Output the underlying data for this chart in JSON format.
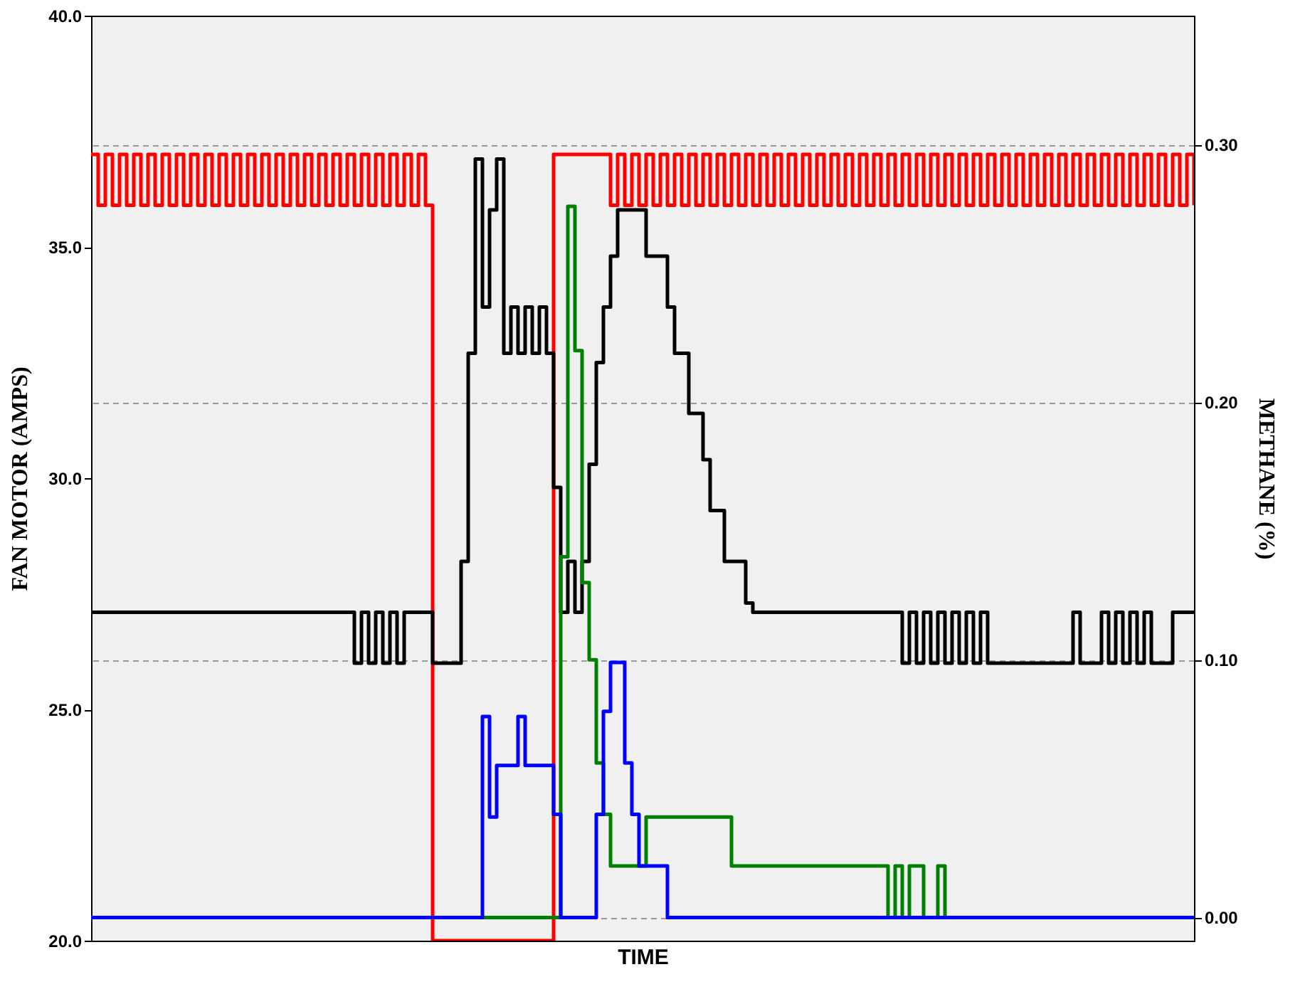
{
  "chart_data": {
    "type": "step",
    "xlabel": "TIME",
    "ylabel": "FAN MOTOR (AMPS)",
    "y2label": "METHANE (%)",
    "categories": [
      null,
      null,
      null,
      null,
      null,
      null,
      null,
      null,
      null,
      null,
      null,
      null,
      null,
      null,
      null,
      null,
      null,
      null,
      null,
      null,
      null,
      null,
      null,
      null,
      null,
      null,
      null,
      null,
      null,
      null,
      null,
      null,
      null,
      null,
      null,
      null,
      null,
      null,
      null,
      null,
      null,
      null,
      null,
      null,
      null,
      null,
      null,
      null,
      null,
      null,
      null,
      null,
      null,
      null,
      null,
      null,
      null,
      null,
      null,
      null,
      null,
      null,
      null,
      null,
      null,
      null,
      null,
      null,
      null,
      null,
      null,
      null,
      null,
      null,
      null,
      null,
      null,
      null,
      null,
      null,
      null,
      null,
      null,
      null,
      null,
      null,
      null,
      null,
      null,
      null,
      null,
      null,
      null,
      null,
      null,
      null,
      null,
      null,
      null,
      null,
      null,
      null,
      null,
      null,
      null,
      null,
      null,
      null,
      null,
      null,
      null,
      null,
      null,
      null,
      null,
      null,
      null,
      null,
      null,
      null,
      null,
      null,
      null,
      null,
      null,
      null,
      null,
      null,
      null,
      null,
      null,
      null,
      null,
      null,
      null,
      null,
      null,
      null,
      null,
      null,
      null,
      null,
      null,
      null,
      null,
      null,
      null,
      null,
      null,
      null,
      null,
      null,
      null,
      null,
      null,
      null
    ],
    "ylim": [
      20,
      40
    ],
    "yticks": [
      {
        "value": 20,
        "label": "20.0"
      },
      {
        "value": 25,
        "label": "25.0"
      },
      {
        "value": 30,
        "label": "30.0"
      },
      {
        "value": 35,
        "label": "35.0"
      },
      {
        "value": 40,
        "label": "40.0"
      }
    ],
    "y2lim": [
      -0.009,
      0.35
    ],
    "y2ticks": [
      {
        "value": 0,
        "label": "0.00"
      },
      {
        "value": 0.1,
        "label": "0.10"
      },
      {
        "value": 0.2,
        "label": "0.20"
      },
      {
        "value": 0.3,
        "label": "0.30"
      }
    ],
    "grid": true,
    "tick_labels": "y",
    "line_style": "solid",
    "marker": "none",
    "series": [
      {
        "color": "#ff0000",
        "values": [
          37.0,
          35.9,
          37.0,
          35.9,
          37.0,
          35.9,
          37.0,
          35.9,
          37.0,
          35.9,
          37.0,
          35.9,
          37.0,
          35.9,
          37.0,
          35.9,
          37.0,
          35.9,
          37.0,
          35.9,
          37.0,
          35.9,
          37.0,
          35.9,
          37.0,
          35.9,
          37.0,
          35.9,
          37.0,
          35.9,
          37.0,
          35.9,
          37.0,
          35.9,
          37.0,
          35.9,
          37.0,
          35.9,
          37.0,
          35.9,
          37.0,
          35.9,
          37.0,
          35.9,
          37.0,
          35.9,
          37.0,
          35.9,
          20.0,
          20.0,
          20.0,
          20.0,
          20.0,
          20.0,
          20.0,
          20.0,
          20.0,
          20.0,
          20.0,
          20.0,
          20.0,
          20.0,
          20.0,
          20.0,
          20.0,
          37.0,
          37.0,
          37.0,
          37.0,
          37.0,
          37.0,
          37.0,
          37.0,
          35.9,
          37.0,
          35.9,
          37.0,
          35.9,
          37.0,
          35.9,
          37.0,
          35.9,
          37.0,
          35.9,
          37.0,
          35.9,
          37.0,
          35.9,
          37.0,
          35.9,
          37.0,
          35.9,
          37.0,
          35.9,
          37.0,
          35.9,
          37.0,
          35.9,
          37.0,
          35.9,
          37.0,
          35.9,
          37.0,
          35.9,
          37.0,
          35.9,
          37.0,
          35.9,
          37.0,
          35.9,
          37.0,
          35.9,
          37.0,
          35.9,
          37.0,
          35.9,
          37.0,
          35.9,
          37.0,
          35.9,
          37.0,
          35.9,
          37.0,
          35.9,
          37.0,
          35.9,
          37.0,
          35.9,
          37.0,
          35.9,
          37.0,
          35.9,
          37.0,
          35.9,
          37.0,
          35.9,
          37.0,
          35.9,
          37.0,
          35.9,
          37.0,
          35.9,
          37.0,
          35.9,
          37.0,
          35.9,
          37.0,
          35.9,
          37.0,
          35.9,
          37.0,
          35.9,
          37.0,
          35.9,
          37.0,
          35.9
        ]
      },
      {
        "color": "#000000",
        "values": [
          27.1,
          27.1,
          27.1,
          27.1,
          27.1,
          27.1,
          27.1,
          27.1,
          27.1,
          27.1,
          27.1,
          27.1,
          27.1,
          27.1,
          27.1,
          27.1,
          27.1,
          27.1,
          27.1,
          27.1,
          27.1,
          27.1,
          27.1,
          27.1,
          27.1,
          27.1,
          27.1,
          27.1,
          27.1,
          27.1,
          27.1,
          27.1,
          27.1,
          27.1,
          27.1,
          27.1,
          27.1,
          26.0,
          27.1,
          26.0,
          27.1,
          26.0,
          27.1,
          26.0,
          27.1,
          27.1,
          27.1,
          27.1,
          26.0,
          26.0,
          26.0,
          26.0,
          28.2,
          32.7,
          36.9,
          33.7,
          35.8,
          36.9,
          32.7,
          33.7,
          32.7,
          33.7,
          32.7,
          33.7,
          32.7,
          29.8,
          27.1,
          28.2,
          27.1,
          28.2,
          30.3,
          32.5,
          33.7,
          34.8,
          35.8,
          35.8,
          35.8,
          35.8,
          34.8,
          34.8,
          34.8,
          33.7,
          32.7,
          32.7,
          31.4,
          31.4,
          30.4,
          29.3,
          29.3,
          28.2,
          28.2,
          28.2,
          27.3,
          27.1,
          27.1,
          27.1,
          27.1,
          27.1,
          27.1,
          27.1,
          27.1,
          27.1,
          27.1,
          27.1,
          27.1,
          27.1,
          27.1,
          27.1,
          27.1,
          27.1,
          27.1,
          27.1,
          27.1,
          27.1,
          26.0,
          27.1,
          26.0,
          27.1,
          26.0,
          27.1,
          26.0,
          27.1,
          26.0,
          27.1,
          26.0,
          27.1,
          26.0,
          26.0,
          26.0,
          26.0,
          26.0,
          26.0,
          26.0,
          26.0,
          26.0,
          26.0,
          26.0,
          26.0,
          27.1,
          26.0,
          26.0,
          26.0,
          27.1,
          26.0,
          27.1,
          26.0,
          27.1,
          26.0,
          27.1,
          26.0,
          26.0,
          26.0,
          27.1,
          27.1,
          27.1,
          27.1
        ]
      },
      {
        "color": "#008000",
        "axis": "y2",
        "values": [
          null,
          null,
          null,
          null,
          null,
          null,
          null,
          null,
          null,
          null,
          null,
          null,
          null,
          null,
          null,
          null,
          null,
          null,
          null,
          null,
          null,
          null,
          null,
          null,
          null,
          null,
          null,
          null,
          null,
          null,
          null,
          null,
          null,
          null,
          null,
          null,
          null,
          null,
          null,
          null,
          null,
          null,
          null,
          null,
          null,
          null,
          null,
          null,
          null,
          null,
          null,
          null,
          null,
          null,
          0,
          0,
          0,
          0,
          0,
          0,
          0,
          0,
          0,
          0,
          0,
          0,
          0.14,
          0.276,
          0.22,
          0.13,
          0.1,
          0.06,
          0.04,
          0.02,
          0.02,
          0.02,
          0.02,
          0.02,
          0.039,
          0.039,
          0.039,
          0.039,
          0.039,
          0.039,
          0.039,
          0.039,
          0.039,
          0.039,
          0.039,
          0.039,
          0.02,
          0.02,
          0.02,
          0.02,
          0.02,
          0.02,
          0.02,
          0.02,
          0.02,
          0.02,
          0.02,
          0.02,
          0.02,
          0.02,
          0.02,
          0.02,
          0.02,
          0.02,
          0.02,
          0.02,
          0.02,
          0.02,
          0,
          0.02,
          0,
          0.02,
          0.02,
          0,
          0,
          0.02,
          0,
          null,
          null,
          null,
          null,
          null,
          null,
          null,
          null,
          null,
          null,
          null,
          null,
          null,
          null,
          null,
          null,
          null,
          null,
          null,
          null,
          null,
          null,
          null,
          null,
          null,
          null,
          null,
          null,
          null,
          null,
          null,
          null,
          null,
          null,
          null
        ]
      },
      {
        "color": "#0000ff",
        "axis": "y2",
        "values": [
          0,
          0,
          0,
          0,
          0,
          0,
          0,
          0,
          0,
          0,
          0,
          0,
          0,
          0,
          0,
          0,
          0,
          0,
          0,
          0,
          0,
          0,
          0,
          0,
          0,
          0,
          0,
          0,
          0,
          0,
          0,
          0,
          0,
          0,
          0,
          0,
          0,
          0,
          0,
          0,
          0,
          0,
          0,
          0,
          0,
          0,
          0,
          0,
          0,
          0,
          0,
          0,
          0,
          0,
          0,
          0.078,
          0.039,
          0.059,
          0.059,
          0.059,
          0.078,
          0.059,
          0.059,
          0.059,
          0.059,
          0.04,
          0,
          0,
          0,
          0,
          0,
          0.04,
          0.08,
          0.099,
          0.099,
          0.06,
          0.04,
          0.02,
          0.02,
          0.02,
          0.02,
          0,
          0,
          0,
          0,
          0,
          0,
          0,
          0,
          0,
          0,
          0,
          0,
          0,
          0,
          0,
          0,
          0,
          0,
          0,
          0,
          0,
          0,
          0,
          0,
          0,
          0,
          0,
          0,
          0,
          0,
          0,
          0,
          0,
          0,
          0,
          0,
          0,
          0,
          0,
          0,
          0,
          0,
          0,
          0,
          0,
          0,
          0,
          0,
          0,
          0,
          0,
          0,
          0,
          0,
          0,
          0,
          0,
          0,
          0,
          0,
          0,
          0,
          0,
          0,
          0,
          0,
          0,
          0,
          0,
          0,
          0,
          0,
          0,
          0,
          0
        ]
      }
    ]
  }
}
